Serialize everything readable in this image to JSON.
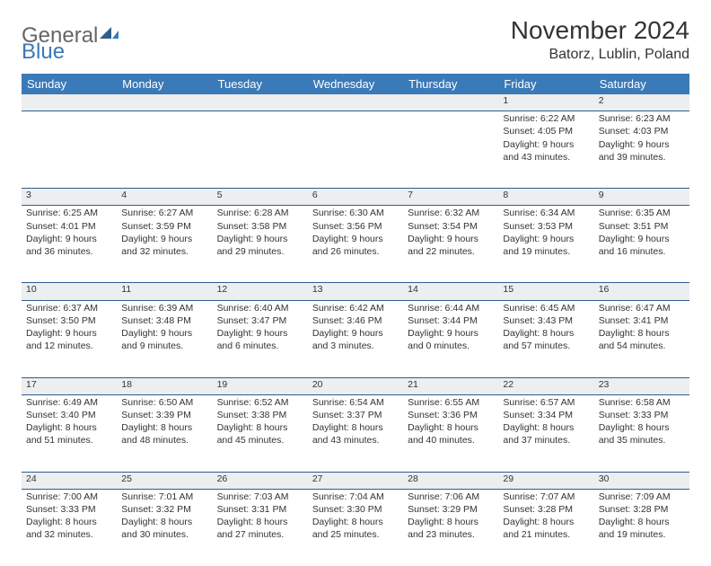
{
  "brand": {
    "part1": "General",
    "part2": "Blue"
  },
  "title": "November 2024",
  "location": "Batorz, Lublin, Poland",
  "header_bg": "#3a7ab8",
  "divider_color": "#2f5d8e",
  "daynum_bg": "#eceef0",
  "days": [
    "Sunday",
    "Monday",
    "Tuesday",
    "Wednesday",
    "Thursday",
    "Friday",
    "Saturday"
  ],
  "weeks": [
    {
      "nums": [
        "",
        "",
        "",
        "",
        "",
        "1",
        "2"
      ],
      "cells": [
        null,
        null,
        null,
        null,
        null,
        {
          "sunrise": "6:22 AM",
          "sunset": "4:05 PM",
          "daylight": "9 hours and 43 minutes."
        },
        {
          "sunrise": "6:23 AM",
          "sunset": "4:03 PM",
          "daylight": "9 hours and 39 minutes."
        }
      ]
    },
    {
      "nums": [
        "3",
        "4",
        "5",
        "6",
        "7",
        "8",
        "9"
      ],
      "cells": [
        {
          "sunrise": "6:25 AM",
          "sunset": "4:01 PM",
          "daylight": "9 hours and 36 minutes."
        },
        {
          "sunrise": "6:27 AM",
          "sunset": "3:59 PM",
          "daylight": "9 hours and 32 minutes."
        },
        {
          "sunrise": "6:28 AM",
          "sunset": "3:58 PM",
          "daylight": "9 hours and 29 minutes."
        },
        {
          "sunrise": "6:30 AM",
          "sunset": "3:56 PM",
          "daylight": "9 hours and 26 minutes."
        },
        {
          "sunrise": "6:32 AM",
          "sunset": "3:54 PM",
          "daylight": "9 hours and 22 minutes."
        },
        {
          "sunrise": "6:34 AM",
          "sunset": "3:53 PM",
          "daylight": "9 hours and 19 minutes."
        },
        {
          "sunrise": "6:35 AM",
          "sunset": "3:51 PM",
          "daylight": "9 hours and 16 minutes."
        }
      ]
    },
    {
      "nums": [
        "10",
        "11",
        "12",
        "13",
        "14",
        "15",
        "16"
      ],
      "cells": [
        {
          "sunrise": "6:37 AM",
          "sunset": "3:50 PM",
          "daylight": "9 hours and 12 minutes."
        },
        {
          "sunrise": "6:39 AM",
          "sunset": "3:48 PM",
          "daylight": "9 hours and 9 minutes."
        },
        {
          "sunrise": "6:40 AM",
          "sunset": "3:47 PM",
          "daylight": "9 hours and 6 minutes."
        },
        {
          "sunrise": "6:42 AM",
          "sunset": "3:46 PM",
          "daylight": "9 hours and 3 minutes."
        },
        {
          "sunrise": "6:44 AM",
          "sunset": "3:44 PM",
          "daylight": "9 hours and 0 minutes."
        },
        {
          "sunrise": "6:45 AM",
          "sunset": "3:43 PM",
          "daylight": "8 hours and 57 minutes."
        },
        {
          "sunrise": "6:47 AM",
          "sunset": "3:41 PM",
          "daylight": "8 hours and 54 minutes."
        }
      ]
    },
    {
      "nums": [
        "17",
        "18",
        "19",
        "20",
        "21",
        "22",
        "23"
      ],
      "cells": [
        {
          "sunrise": "6:49 AM",
          "sunset": "3:40 PM",
          "daylight": "8 hours and 51 minutes."
        },
        {
          "sunrise": "6:50 AM",
          "sunset": "3:39 PM",
          "daylight": "8 hours and 48 minutes."
        },
        {
          "sunrise": "6:52 AM",
          "sunset": "3:38 PM",
          "daylight": "8 hours and 45 minutes."
        },
        {
          "sunrise": "6:54 AM",
          "sunset": "3:37 PM",
          "daylight": "8 hours and 43 minutes."
        },
        {
          "sunrise": "6:55 AM",
          "sunset": "3:36 PM",
          "daylight": "8 hours and 40 minutes."
        },
        {
          "sunrise": "6:57 AM",
          "sunset": "3:34 PM",
          "daylight": "8 hours and 37 minutes."
        },
        {
          "sunrise": "6:58 AM",
          "sunset": "3:33 PM",
          "daylight": "8 hours and 35 minutes."
        }
      ]
    },
    {
      "nums": [
        "24",
        "25",
        "26",
        "27",
        "28",
        "29",
        "30"
      ],
      "cells": [
        {
          "sunrise": "7:00 AM",
          "sunset": "3:33 PM",
          "daylight": "8 hours and 32 minutes."
        },
        {
          "sunrise": "7:01 AM",
          "sunset": "3:32 PM",
          "daylight": "8 hours and 30 minutes."
        },
        {
          "sunrise": "7:03 AM",
          "sunset": "3:31 PM",
          "daylight": "8 hours and 27 minutes."
        },
        {
          "sunrise": "7:04 AM",
          "sunset": "3:30 PM",
          "daylight": "8 hours and 25 minutes."
        },
        {
          "sunrise": "7:06 AM",
          "sunset": "3:29 PM",
          "daylight": "8 hours and 23 minutes."
        },
        {
          "sunrise": "7:07 AM",
          "sunset": "3:28 PM",
          "daylight": "8 hours and 21 minutes."
        },
        {
          "sunrise": "7:09 AM",
          "sunset": "3:28 PM",
          "daylight": "8 hours and 19 minutes."
        }
      ]
    }
  ]
}
